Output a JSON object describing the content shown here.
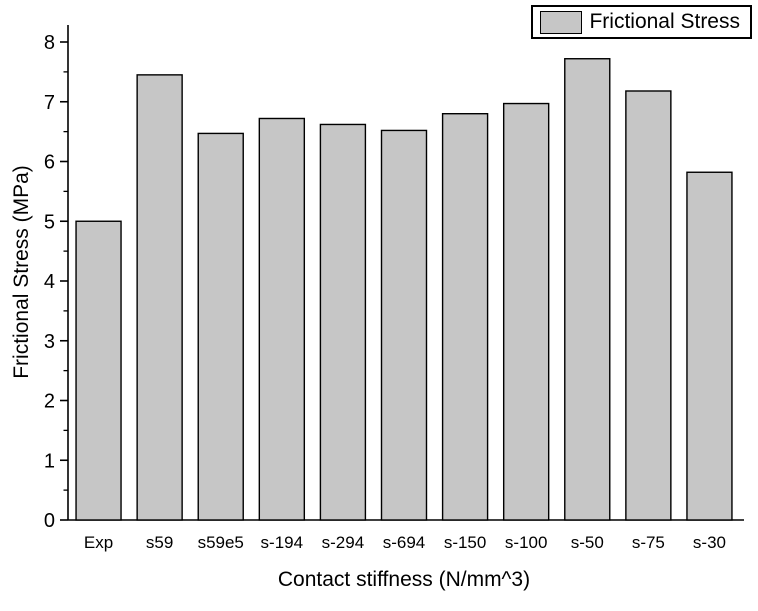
{
  "chart_data": {
    "type": "bar",
    "categories": [
      "Exp",
      "s59",
      "s59e5",
      "s-194",
      "s-294",
      "s-694",
      "s-150",
      "s-100",
      "s-50",
      "s-75",
      "s-30"
    ],
    "values": [
      5.0,
      7.45,
      6.47,
      6.72,
      6.62,
      6.52,
      6.8,
      6.97,
      7.72,
      7.18,
      5.82
    ],
    "title": "",
    "xlabel": "Contact stiffness (N/mm^3)",
    "ylabel": "Frictional Stress (MPa)",
    "ylim": [
      0,
      8
    ],
    "ytick_step": 1,
    "yticks": [
      0,
      1,
      2,
      3,
      4,
      5,
      6,
      7,
      8
    ],
    "minor_tick_step": 0.5,
    "grid": false,
    "legend": {
      "label": "Frictional Stress",
      "position": "top-right"
    },
    "bar_color": "#c6c6c6",
    "bar_border_color": "#000000",
    "axis_color": "#000000",
    "background": "#ffffff"
  }
}
